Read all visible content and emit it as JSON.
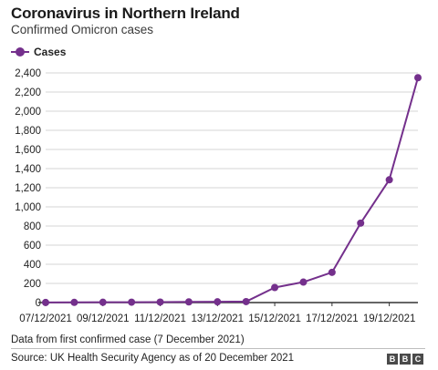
{
  "title": "Coronavirus in Northern Ireland",
  "subtitle": "Confirmed Omicron cases",
  "note": "Data from first confirmed case (7 December 2021)",
  "source": "Source: UK Health Security Agency as of 20 December 2021",
  "logo": [
    "B",
    "B",
    "C"
  ],
  "colors": {
    "series": "#74308c",
    "grid": "#d6d6d6",
    "axis": "#333333"
  },
  "chart_data": {
    "type": "line",
    "title": "Coronavirus in Northern Ireland",
    "subtitle": "Confirmed Omicron cases",
    "legend": {
      "position": "top-left",
      "entries": [
        "Cases"
      ]
    },
    "grid": true,
    "x": [
      "07/12/2021",
      "08/12/2021",
      "09/12/2021",
      "10/12/2021",
      "11/12/2021",
      "12/12/2021",
      "13/12/2021",
      "14/12/2021",
      "15/12/2021",
      "16/12/2021",
      "17/12/2021",
      "18/12/2021",
      "19/12/2021",
      "20/12/2021"
    ],
    "x_tick_labels": [
      "07/12/2021",
      "09/12/2021",
      "11/12/2021",
      "13/12/2021",
      "15/12/2021",
      "17/12/2021",
      "19/12/2021"
    ],
    "series": [
      {
        "name": "Cases",
        "values": [
          1,
          2,
          3,
          4,
          5,
          7,
          8,
          10,
          157,
          214,
          316,
          830,
          1283,
          2350
        ]
      }
    ],
    "y_ticks": [
      "0",
      "200",
      "400",
      "600",
      "800",
      "1,000",
      "1,200",
      "1,400",
      "1,600",
      "1,800",
      "2,000",
      "2,200",
      "2,400"
    ],
    "ylim": [
      0,
      2400
    ],
    "xlabel": "",
    "ylabel": ""
  }
}
